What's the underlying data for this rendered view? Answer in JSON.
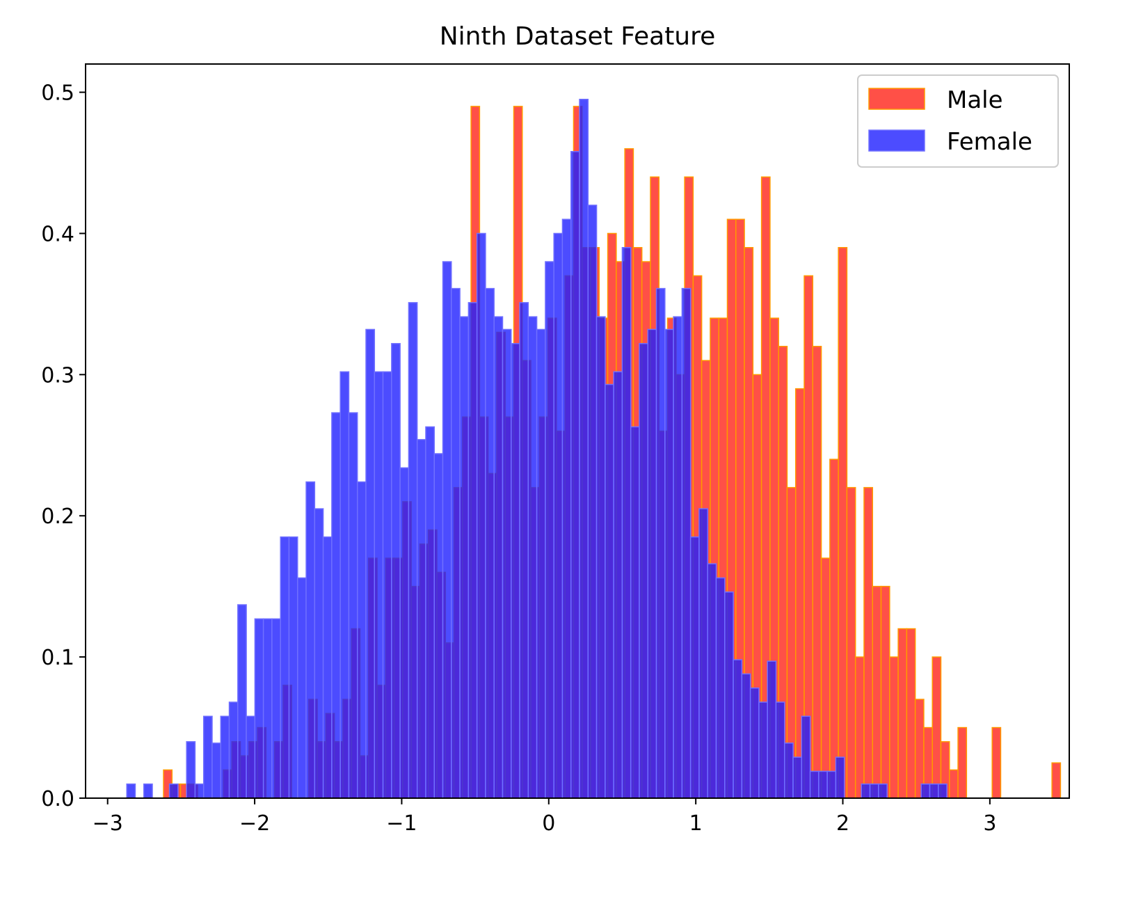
{
  "chart_data": {
    "type": "bar",
    "title": "Ninth Dataset Feature",
    "xlabel": "",
    "ylabel": "",
    "xlim": [
      -3.15,
      3.54
    ],
    "ylim": [
      0.0,
      0.52
    ],
    "xticks": [
      -3,
      -2,
      -1,
      0,
      1,
      2,
      3
    ],
    "xtick_labels": [
      "−3",
      "−2",
      "−1",
      "0",
      "1",
      "2",
      "3"
    ],
    "yticks": [
      0.0,
      0.1,
      0.2,
      0.3,
      0.4,
      0.5
    ],
    "ytick_labels": [
      "0.0",
      "0.1",
      "0.2",
      "0.3",
      "0.4",
      "0.5"
    ],
    "legend": {
      "placement": "top-right",
      "entries": [
        "Male",
        "Female"
      ]
    },
    "colors": {
      "male_fill": "#ff2a1f",
      "male_edge": "#ff9a00",
      "female_fill": "#1f1fff",
      "female_edge": "#7070ff"
    },
    "series": [
      {
        "name": "Male",
        "bin_start": -2.62,
        "bin_width": 0.0581,
        "values": [
          0.02,
          0.01,
          0.01,
          0.01,
          0.0,
          0.0,
          0.0,
          0.02,
          0.04,
          0.03,
          0.04,
          0.05,
          0.0,
          0.04,
          0.08,
          0.0,
          0.0,
          0.07,
          0.04,
          0.06,
          0.04,
          0.07,
          0.12,
          0.03,
          0.17,
          0.08,
          0.17,
          0.17,
          0.21,
          0.15,
          0.18,
          0.19,
          0.16,
          0.11,
          0.22,
          0.27,
          0.49,
          0.27,
          0.23,
          0.33,
          0.27,
          0.49,
          0.31,
          0.22,
          0.27,
          0.34,
          0.26,
          0.37,
          0.49,
          0.39,
          0.39,
          0.34,
          0.4,
          0.38,
          0.46,
          0.39,
          0.38,
          0.44,
          0.26,
          0.34,
          0.3,
          0.44,
          0.37,
          0.31,
          0.34,
          0.34,
          0.41,
          0.41,
          0.39,
          0.3,
          0.44,
          0.34,
          0.32,
          0.22,
          0.29,
          0.37,
          0.32,
          0.17,
          0.24,
          0.39,
          0.22,
          0.1,
          0.22,
          0.15,
          0.15,
          0.1,
          0.12,
          0.12,
          0.07,
          0.05,
          0.1,
          0.04,
          0.02,
          0.05,
          0.0,
          0.0,
          0.0,
          0.05,
          0.0,
          0.0,
          0.0,
          0.0,
          0.0,
          0.0,
          0.025
        ]
      },
      {
        "name": "Female",
        "bin_start": -2.87,
        "bin_width": 0.0581,
        "values": [
          0.01,
          0.0,
          0.01,
          0.0,
          0.0,
          0.01,
          0.0,
          0.04,
          0.01,
          0.058,
          0.039,
          0.058,
          0.068,
          0.137,
          0.058,
          0.127,
          0.127,
          0.127,
          0.185,
          0.185,
          0.156,
          0.224,
          0.205,
          0.185,
          0.273,
          0.302,
          0.273,
          0.224,
          0.332,
          0.302,
          0.302,
          0.322,
          0.234,
          0.351,
          0.254,
          0.263,
          0.244,
          0.38,
          0.361,
          0.341,
          0.351,
          0.4,
          0.361,
          0.341,
          0.332,
          0.322,
          0.351,
          0.341,
          0.332,
          0.38,
          0.4,
          0.41,
          0.458,
          0.495,
          0.42,
          0.341,
          0.293,
          0.302,
          0.39,
          0.263,
          0.322,
          0.332,
          0.361,
          0.332,
          0.341,
          0.361,
          0.185,
          0.205,
          0.166,
          0.156,
          0.146,
          0.098,
          0.088,
          0.078,
          0.068,
          0.097,
          0.068,
          0.039,
          0.029,
          0.058,
          0.019,
          0.019,
          0.019,
          0.029,
          0.0,
          0.0,
          0.01,
          0.01,
          0.01,
          0.0,
          0.0,
          0.0,
          0.0,
          0.01,
          0.01,
          0.01
        ]
      }
    ]
  }
}
